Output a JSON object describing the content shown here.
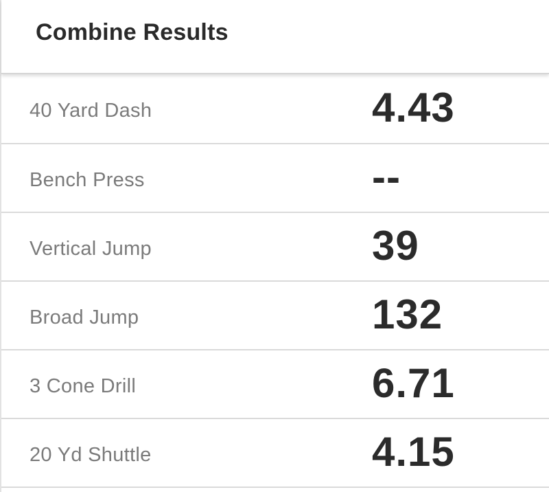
{
  "card": {
    "title": "Combine Results"
  },
  "results": [
    {
      "label": "40 Yard Dash",
      "value": "4.43"
    },
    {
      "label": "Bench Press",
      "value": "--"
    },
    {
      "label": "Vertical Jump",
      "value": "39"
    },
    {
      "label": "Broad Jump",
      "value": "132"
    },
    {
      "label": "3 Cone Drill",
      "value": "6.71"
    },
    {
      "label": "20 Yd Shuttle",
      "value": "4.15"
    }
  ]
}
